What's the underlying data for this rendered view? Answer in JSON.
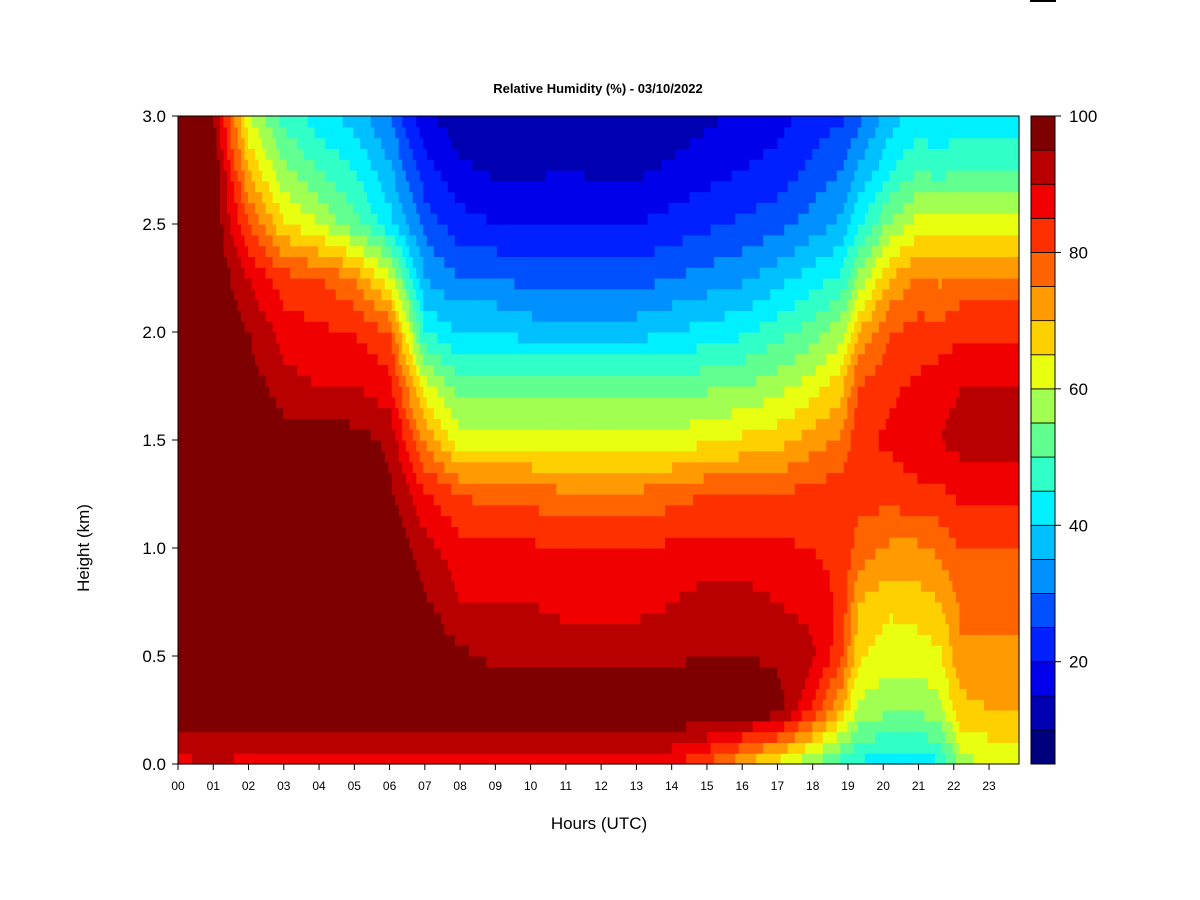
{
  "chart_data": {
    "type": "heatmap",
    "title": "Relative Humidity (%) - 03/10/2022",
    "xlabel": "Hours (UTC)",
    "ylabel": "Height (km)",
    "x_ticks": [
      "00",
      "01",
      "02",
      "03",
      "04",
      "05",
      "06",
      "07",
      "08",
      "09",
      "10",
      "11",
      "12",
      "13",
      "14",
      "15",
      "16",
      "17",
      "18",
      "19",
      "20",
      "21",
      "22",
      "23"
    ],
    "y_ticks": [
      "0.0",
      "0.5",
      "1.0",
      "1.5",
      "2.0",
      "2.5",
      "3.0"
    ],
    "xlim": [
      0,
      23.85
    ],
    "ylim": [
      0,
      3.0
    ],
    "colorbar": {
      "range": [
        5,
        100
      ],
      "tick_values": [
        20,
        40,
        60,
        80,
        100
      ],
      "tick_labels": [
        "20",
        "40",
        "60",
        "80",
        "100"
      ],
      "levels": [
        {
          "min": 5,
          "max": 10,
          "color": "#00007f"
        },
        {
          "min": 10,
          "max": 15,
          "color": "#0000b2"
        },
        {
          "min": 15,
          "max": 20,
          "color": "#0000ea"
        },
        {
          "min": 20,
          "max": 25,
          "color": "#0020ff"
        },
        {
          "min": 25,
          "max": 30,
          "color": "#0050ff"
        },
        {
          "min": 30,
          "max": 35,
          "color": "#0090ff"
        },
        {
          "min": 35,
          "max": 40,
          "color": "#00c0ff"
        },
        {
          "min": 40,
          "max": 45,
          "color": "#00f0ff"
        },
        {
          "min": 45,
          "max": 50,
          "color": "#30ffc8"
        },
        {
          "min": 50,
          "max": 55,
          "color": "#60ff90"
        },
        {
          "min": 55,
          "max": 60,
          "color": "#a0ff50"
        },
        {
          "min": 60,
          "max": 65,
          "color": "#e8ff10"
        },
        {
          "min": 65,
          "max": 70,
          "color": "#ffd000"
        },
        {
          "min": 70,
          "max": 75,
          "color": "#ff9a00"
        },
        {
          "min": 75,
          "max": 80,
          "color": "#ff6400"
        },
        {
          "min": 80,
          "max": 85,
          "color": "#ff3000"
        },
        {
          "min": 85,
          "max": 90,
          "color": "#f00000"
        },
        {
          "min": 90,
          "max": 95,
          "color": "#b80000"
        },
        {
          "min": 95,
          "max": 100,
          "color": "#7f0000"
        }
      ]
    },
    "profile_heights_km": [
      0.0,
      0.25,
      0.5,
      0.75,
      1.0,
      1.25,
      1.5,
      1.75,
      2.0,
      2.25,
      2.5,
      2.75,
      3.0
    ],
    "profiles": [
      {
        "hour": 0,
        "rh": [
          88,
          100,
          100,
          100,
          100,
          100,
          100,
          100,
          100,
          100,
          100,
          100,
          100
        ]
      },
      {
        "hour": 1,
        "rh": [
          90,
          100,
          100,
          100,
          100,
          100,
          100,
          100,
          100,
          100,
          100,
          100,
          95
        ]
      },
      {
        "hour": 2,
        "rh": [
          88,
          100,
          100,
          100,
          100,
          100,
          100,
          98,
          95,
          90,
          80,
          70,
          60
        ]
      },
      {
        "hour": 3,
        "rh": [
          88,
          100,
          100,
          100,
          100,
          100,
          98,
          92,
          88,
          82,
          66,
          56,
          48
        ]
      },
      {
        "hour": 4,
        "rh": [
          88,
          100,
          100,
          100,
          100,
          100,
          98,
          90,
          86,
          80,
          60,
          50,
          42
        ]
      },
      {
        "hour": 5,
        "rh": [
          88,
          100,
          100,
          100,
          100,
          100,
          97,
          90,
          85,
          75,
          52,
          45,
          38
        ]
      },
      {
        "hour": 6,
        "rh": [
          88,
          100,
          100,
          100,
          100,
          96,
          94,
          87,
          80,
          62,
          42,
          36,
          30
        ]
      },
      {
        "hour": 7,
        "rh": [
          88,
          100,
          100,
          96,
          92,
          86,
          74,
          62,
          45,
          35,
          28,
          22,
          16
        ]
      },
      {
        "hour": 8,
        "rh": [
          88,
          100,
          96,
          90,
          87,
          80,
          62,
          52,
          40,
          30,
          22,
          16,
          12
        ]
      },
      {
        "hour": 9,
        "rh": [
          87,
          100,
          94,
          90,
          86,
          78,
          62,
          52,
          40,
          30,
          20,
          14,
          10
        ]
      },
      {
        "hour": 10,
        "rh": [
          86,
          100,
          94,
          90,
          86,
          78,
          62,
          52,
          38,
          28,
          20,
          14,
          10
        ]
      },
      {
        "hour": 11,
        "rh": [
          86,
          100,
          94,
          88,
          85,
          76,
          62,
          52,
          38,
          28,
          20,
          15,
          11
        ]
      },
      {
        "hour": 12,
        "rh": [
          86,
          100,
          94,
          88,
          85,
          76,
          62,
          52,
          38,
          28,
          20,
          14,
          10
        ]
      },
      {
        "hour": 13,
        "rh": [
          86,
          100,
          94,
          88,
          85,
          76,
          62,
          52,
          38,
          28,
          20,
          14,
          10
        ]
      },
      {
        "hour": 14,
        "rh": [
          86,
          100,
          94,
          90,
          86,
          78,
          62,
          52,
          40,
          30,
          22,
          16,
          12
        ]
      },
      {
        "hour": 15,
        "rh": [
          80,
          100,
          95,
          92,
          87,
          80,
          64,
          54,
          42,
          32,
          24,
          18,
          14
        ]
      },
      {
        "hour": 16,
        "rh": [
          70,
          100,
          95,
          92,
          87,
          80,
          66,
          55,
          44,
          34,
          26,
          20,
          16
        ]
      },
      {
        "hour": 17,
        "rh": [
          62,
          98,
          94,
          90,
          86,
          80,
          68,
          58,
          48,
          38,
          28,
          22,
          18
        ]
      },
      {
        "hour": 17.9,
        "rh": [
          55,
          86,
          92,
          88,
          85,
          82,
          72,
          62,
          52,
          42,
          32,
          26,
          22
        ]
      },
      {
        "hour": 18.8,
        "rh": [
          48,
          70,
          82,
          84,
          84,
          83,
          76,
          68,
          58,
          46,
          36,
          30,
          24
        ]
      },
      {
        "hour": 19.3,
        "rh": [
          44,
          58,
          66,
          70,
          78,
          82,
          84,
          80,
          70,
          56,
          44,
          36,
          28
        ]
      },
      {
        "hour": 20.2,
        "rh": [
          42,
          56,
          62,
          66,
          74,
          82,
          86,
          84,
          80,
          70,
          56,
          44,
          38
        ]
      },
      {
        "hour": 21.0,
        "rh": [
          42,
          56,
          62,
          68,
          74,
          84,
          88,
          86,
          82,
          76,
          62,
          50,
          42
        ]
      },
      {
        "hour": 21.6,
        "rh": [
          44,
          58,
          64,
          70,
          76,
          84,
          90,
          88,
          82,
          74,
          62,
          48,
          40
        ]
      },
      {
        "hour": 22.2,
        "rh": [
          58,
          68,
          74,
          76,
          80,
          86,
          92,
          90,
          84,
          76,
          62,
          50,
          42
        ]
      },
      {
        "hour": 23,
        "rh": [
          60,
          70,
          74,
          76,
          80,
          86,
          92,
          90,
          84,
          76,
          62,
          50,
          42
        ]
      },
      {
        "hour": 23.85,
        "rh": [
          60,
          70,
          74,
          76,
          80,
          86,
          92,
          90,
          84,
          76,
          62,
          50,
          42
        ]
      }
    ]
  }
}
